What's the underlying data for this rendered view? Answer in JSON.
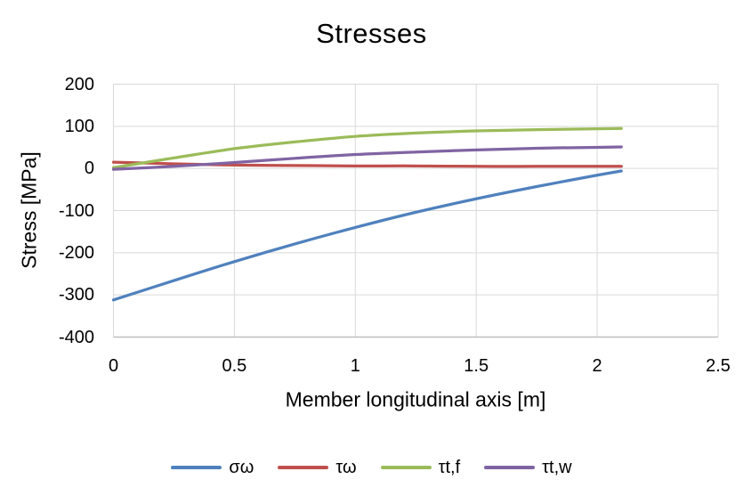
{
  "title": "Stresses",
  "colors": {
    "background": "#FFFFFF",
    "gridline": "#D9D9D9",
    "axis_line": "#BFBFBF",
    "text": "#000000",
    "series_blue": "#4F81BD",
    "series_red": "#C0504D",
    "series_green": "#9BBB59",
    "series_purple": "#8064A2"
  },
  "chart_data": {
    "type": "line",
    "title": "Stresses",
    "xlabel": "Member longitudinal axis [m]",
    "ylabel": "Stress [MPa]",
    "xlim": [
      0,
      2.5
    ],
    "ylim": [
      -400,
      200
    ],
    "x_ticks": [
      0,
      0.5,
      1,
      1.5,
      2,
      2.5
    ],
    "y_ticks": [
      200,
      100,
      0,
      -100,
      -200,
      -300,
      -400
    ],
    "grid": true,
    "legend_position": "bottom",
    "x": [
      0,
      0.25,
      0.5,
      0.75,
      1,
      1.25,
      1.5,
      1.75,
      2,
      2.1
    ],
    "series": [
      {
        "name": "σω",
        "color": "#4F81BD",
        "values": [
          -312,
          -266,
          -221,
          -179,
          -140,
          -104,
          -72,
          -43,
          -16,
          -6
        ]
      },
      {
        "name": "τω",
        "color": "#C0504D",
        "values": [
          15,
          11,
          8,
          7,
          6,
          6,
          5,
          5,
          5,
          5
        ]
      },
      {
        "name": "τt,f",
        "color": "#9BBB59",
        "values": [
          2,
          25,
          47,
          63,
          76,
          84,
          89,
          92,
          94,
          95
        ]
      },
      {
        "name": "τt,w",
        "color": "#8064A2",
        "values": [
          -2,
          5,
          14,
          24,
          33,
          39,
          44,
          48,
          50,
          51
        ]
      }
    ]
  }
}
